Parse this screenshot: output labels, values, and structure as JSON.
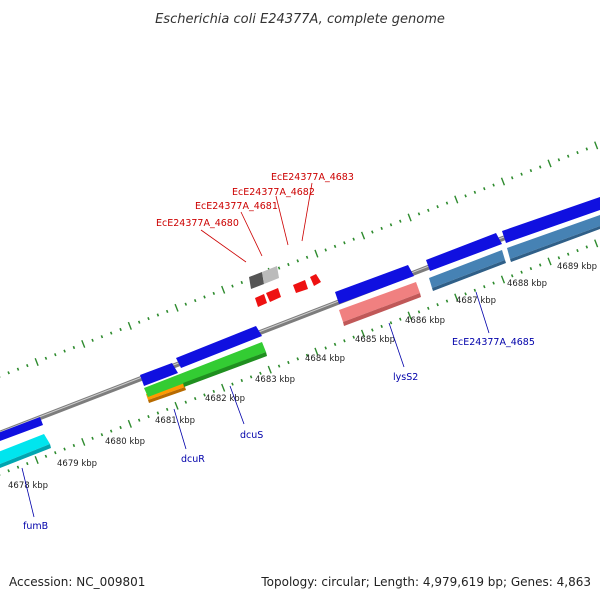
{
  "title": "Escherichia coli E24377A, complete genome",
  "footer": {
    "accession": "Accession: NC_009801",
    "stats": "Topology: circular; Length: 4,979,619 bp; Genes: 4,863"
  },
  "colors": {
    "backbone": "#8a8a8a",
    "dots": "#2e8b2e",
    "blue_gene": "#1010e0",
    "feature_label": "#0000aa",
    "red_label": "#cc0000",
    "red_gene": "#ee1111"
  },
  "scale_labels": [
    "4678 kbp",
    "4679 kbp",
    "4680 kbp",
    "4681 kbp",
    "4682 kbp",
    "4683 kbp",
    "4684 kbp",
    "4685 kbp",
    "4686 kbp",
    "4687 kbp",
    "4688 kbp",
    "4689 kbp"
  ],
  "features_below": [
    {
      "name": "fumB",
      "color": "#00e5ee"
    },
    {
      "name": "dcuR",
      "color": "#ff9900"
    },
    {
      "name": "dcuS",
      "color": "#33cc33"
    },
    {
      "name": "lysS2",
      "color": "#f08080"
    },
    {
      "name": "EcE24377A_4685",
      "color": "#4682b4"
    }
  ],
  "features_above": [
    {
      "name": "EcE24377A_4680"
    },
    {
      "name": "EcE24377A_4681"
    },
    {
      "name": "EcE24377A_4682"
    },
    {
      "name": "EcE24377A_4683"
    }
  ]
}
